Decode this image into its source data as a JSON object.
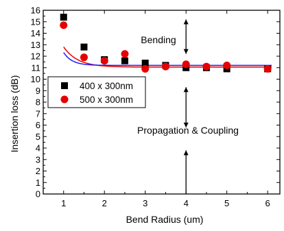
{
  "chart_data": {
    "type": "scatter",
    "xlabel": "Bend Radius (um)",
    "ylabel": "Insertion loss (dB)",
    "xlim": [
      0.5,
      6.3
    ],
    "ylim": [
      0,
      16
    ],
    "x_ticks": [
      "1",
      "2",
      "3",
      "4",
      "5",
      "6"
    ],
    "y_ticks": [
      "0",
      "1",
      "2",
      "3",
      "4",
      "5",
      "6",
      "7",
      "8",
      "9",
      "10",
      "11",
      "12",
      "13",
      "14",
      "15",
      "16"
    ],
    "grid": false,
    "legend": "left-middle",
    "series": [
      {
        "name": "400 x 300nm",
        "marker": "square",
        "color": "#000000",
        "points": [
          {
            "x": 1,
            "y": 15.4
          },
          {
            "x": 1.5,
            "y": 12.8
          },
          {
            "x": 2,
            "y": 11.7
          },
          {
            "x": 2.5,
            "y": 11.6
          },
          {
            "x": 3,
            "y": 11.4
          },
          {
            "x": 3.5,
            "y": 11.2
          },
          {
            "x": 4,
            "y": 11.0
          },
          {
            "x": 4.5,
            "y": 11.0
          },
          {
            "x": 5,
            "y": 10.9
          },
          {
            "x": 6,
            "y": 10.9
          }
        ],
        "fit_color": "#e60000",
        "fit": {
          "y0": 11.05,
          "a": 32.0,
          "k": 2.9
        }
      },
      {
        "name": "500 x 300nm",
        "marker": "circle",
        "color": "#e60000",
        "points": [
          {
            "x": 1,
            "y": 14.7
          },
          {
            "x": 1.5,
            "y": 11.9
          },
          {
            "x": 2,
            "y": 11.6
          },
          {
            "x": 2.5,
            "y": 12.2
          },
          {
            "x": 3,
            "y": 10.9
          },
          {
            "x": 3.5,
            "y": 11.1
          },
          {
            "x": 4,
            "y": 11.3
          },
          {
            "x": 4.5,
            "y": 11.1
          },
          {
            "x": 5,
            "y": 11.2
          },
          {
            "x": 6,
            "y": 10.9
          }
        ],
        "fit_color": "#1a1aff",
        "fit": {
          "y0": 11.2,
          "a": 137.0,
          "k": 4.8
        }
      }
    ],
    "annotations": [
      {
        "id": "bending",
        "text": "Bending"
      },
      {
        "id": "propagation",
        "text": "Propagation & Coupling"
      }
    ],
    "divider_x": 4
  }
}
